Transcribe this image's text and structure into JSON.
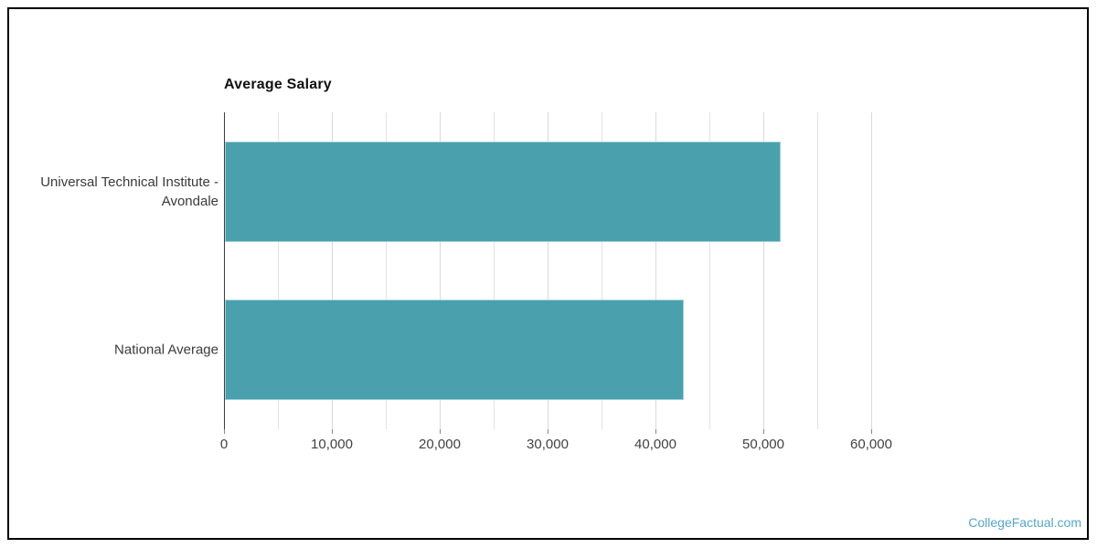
{
  "page": {
    "background": "#ffffff",
    "border_color": "#000000"
  },
  "footer": {
    "brand": "CollegeFactual.com",
    "brand_color": "#54a7c8"
  },
  "chart_data": {
    "type": "bar",
    "orientation": "horizontal",
    "title": "Average Salary",
    "categories": [
      "Universal Technical Institute - Avondale",
      "National Average"
    ],
    "category_label_lines": [
      [
        "Universal Technical Institute -",
        "Avondale"
      ],
      [
        "National Average"
      ]
    ],
    "values": [
      51500,
      42500
    ],
    "xlabel": "",
    "ylabel": "",
    "xlim": [
      0,
      60000
    ],
    "x_major_ticks": [
      0,
      10000,
      20000,
      30000,
      40000,
      50000,
      60000
    ],
    "x_tick_labels": [
      "0",
      "10,000",
      "20,000",
      "30,000",
      "40,000",
      "50,000",
      "60,000"
    ],
    "x_grid_step": 5000,
    "grid": true,
    "legend": false,
    "bar_color": "#4AA0AD",
    "bar_border_color": "#9ED3DA",
    "gridline_color": "#e2e2e2",
    "axis_line_color": "#3f3f3f",
    "tick_label_color": "#424242",
    "category_label_color": "#3a3a3a",
    "title_color": "#111111"
  }
}
